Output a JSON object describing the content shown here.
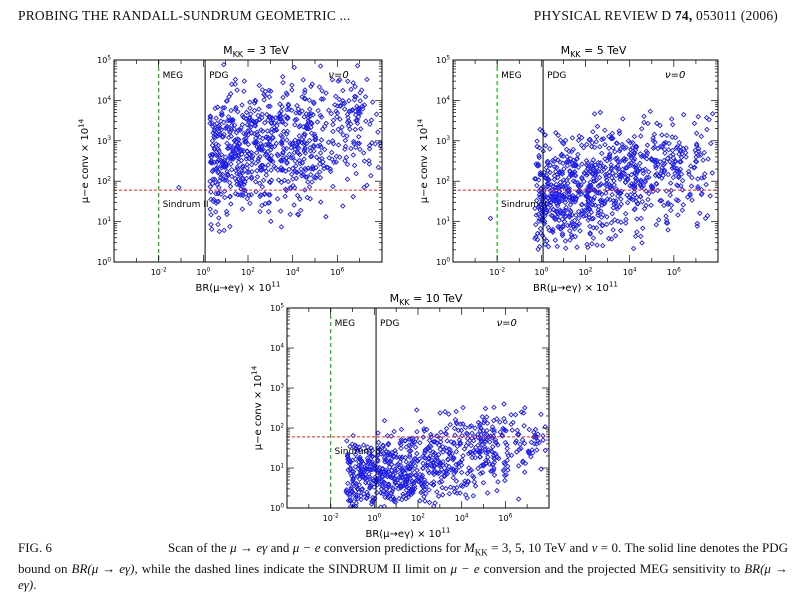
{
  "header": {
    "title": "PROBING THE RANDALL-SUNDRUM GEOMETRIC ...",
    "journal": "PHYSICAL REVIEW D",
    "volume": "74,",
    "article": "053011 (2006)"
  },
  "chart_data": [
    {
      "type": "scatter",
      "title": "M_KK = 3 TeV",
      "xlabel": "BR(μ→eγ) × 10^11",
      "ylabel": "μ−e conv × 10^14",
      "xscale": "log",
      "yscale": "log",
      "xlim": [
        0.0001,
        100000000.0
      ],
      "ylim": [
        1,
        100000
      ],
      "x_tick_labels": [
        "10^-2",
        "10^0",
        "10^2",
        "10^4",
        "10^6"
      ],
      "y_tick_labels": [
        "10^0",
        "10^1",
        "10^2",
        "10^3",
        "10^4",
        "10^5"
      ],
      "marker_color": "#1f1fe6",
      "vertical_lines": [
        {
          "label": "MEG",
          "x": 0.01,
          "style": "dashed",
          "color": "#22bb22"
        },
        {
          "label": "PDG",
          "x": 1.2,
          "style": "solid",
          "color": "#000000"
        }
      ],
      "horizontal_lines": [
        {
          "label": "Sindrum II",
          "y": 60,
          "style": "dashed",
          "color": "#dd2222"
        }
      ],
      "annotation": "ν=0",
      "cloud": {
        "x_range": [
          2,
          100000000.0
        ],
        "y_range": [
          5,
          80000
        ],
        "y_center": 1000,
        "count": 820
      },
      "stray_points": [
        [
          0.08,
          70
        ]
      ]
    },
    {
      "type": "scatter",
      "title": "M_KK = 5 TeV",
      "xlabel": "BR(μ→eγ) × 10^11",
      "ylabel": "μ−e conv × 10^14",
      "xscale": "log",
      "yscale": "log",
      "xlim": [
        0.0001,
        100000000.0
      ],
      "ylim": [
        1,
        100000
      ],
      "x_tick_labels": [
        "10^-2",
        "10^0",
        "10^2",
        "10^4",
        "10^6"
      ],
      "y_tick_labels": [
        "10^0",
        "10^1",
        "10^2",
        "10^3",
        "10^4",
        "10^5"
      ],
      "marker_color": "#1f1fe6",
      "vertical_lines": [
        {
          "label": "MEG",
          "x": 0.01,
          "style": "dashed",
          "color": "#22bb22"
        },
        {
          "label": "PDG",
          "x": 1.2,
          "style": "solid",
          "color": "#000000"
        }
      ],
      "horizontal_lines": [
        {
          "label": "Sindrum II",
          "y": 60,
          "style": "dashed",
          "color": "#dd2222"
        }
      ],
      "annotation": "ν=0",
      "cloud": {
        "x_range": [
          0.5,
          100000000.0
        ],
        "y_range": [
          1.5,
          6000
        ],
        "y_center": 120,
        "count": 900
      },
      "stray_points": [
        [
          0.005,
          12
        ]
      ]
    },
    {
      "type": "scatter",
      "title": "M_KK = 10 TeV",
      "xlabel": "BR(μ→eγ) × 10^11",
      "ylabel": "μ−e conv × 10^14",
      "xscale": "log",
      "yscale": "log",
      "xlim": [
        0.0001,
        100000000.0
      ],
      "ylim": [
        1,
        100000
      ],
      "x_tick_labels": [
        "10^-2",
        "10^0",
        "10^2",
        "10^4",
        "10^6"
      ],
      "y_tick_labels": [
        "10^0",
        "10^1",
        "10^2",
        "10^3",
        "10^4",
        "10^5"
      ],
      "marker_color": "#1f1fe6",
      "vertical_lines": [
        {
          "label": "MEG",
          "x": 0.01,
          "style": "dashed",
          "color": "#22bb22"
        },
        {
          "label": "PDG",
          "x": 1.2,
          "style": "solid",
          "color": "#000000"
        }
      ],
      "horizontal_lines": [
        {
          "label": "Sindrum II",
          "y": 60,
          "style": "dashed",
          "color": "#dd2222"
        }
      ],
      "annotation": "ν=0",
      "cloud": {
        "x_range": [
          0.05,
          100000000.0
        ],
        "y_range": [
          1,
          400
        ],
        "y_center": 15,
        "count": 850
      },
      "stray_points": []
    }
  ],
  "caption": {
    "label": "FIG. 6",
    "pre1": "Scan of the ",
    "m1": "μ → eγ",
    "mid1": " and ",
    "m2": "μ − e",
    "mid2": " conversion predictions for ",
    "m3": "M",
    "m3sub": "KK",
    "mid3": " = 3, 5, 10 TeV and ",
    "m4": "ν",
    "mid4": " = 0. The solid line denotes the PDG bound on ",
    "m5": "BR(μ → eγ)",
    "mid5": ", while the dashed lines indicate the SINDRUM II limit on ",
    "m6": "μ − e",
    "mid6": " conversion and the projected MEG sensitivity to ",
    "m7": "BR(μ → eγ)",
    "end": "."
  }
}
